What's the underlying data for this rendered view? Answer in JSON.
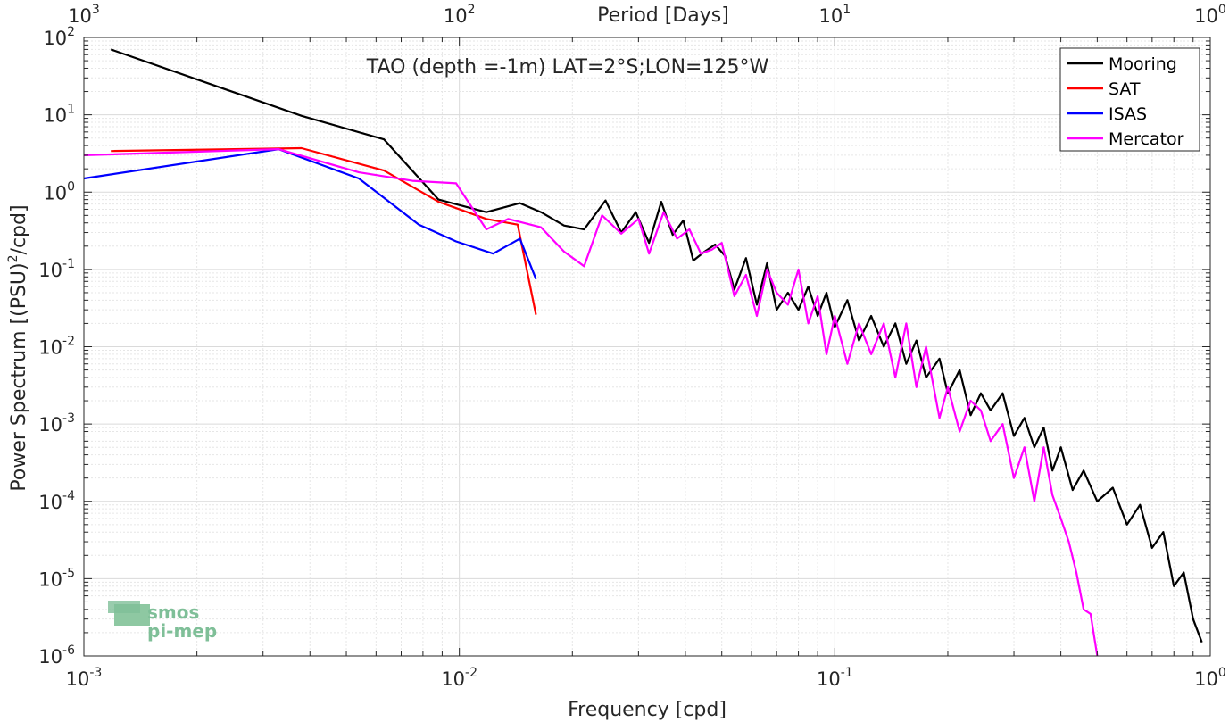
{
  "chart_data": {
    "type": "line",
    "title": "TAO (depth =-1m) LAT=2°S;LON=125°W",
    "xlabel": "Frequency [cpd]",
    "ylabel": "Power Spectrum [(PSU)",
    "ylabel_sup": "2",
    "ylabel_tail": "/cpd]",
    "top_xlabel": "Period [Days]",
    "xscale": "log",
    "yscale": "log",
    "xlim": [
      0.001,
      1
    ],
    "ylim": [
      1e-06,
      100
    ],
    "grid": true,
    "legend_position": "top-right",
    "x_ticks": [
      {
        "base": "10",
        "exp": "-3"
      },
      {
        "base": "10",
        "exp": "-2"
      },
      {
        "base": "10",
        "exp": "-1"
      },
      {
        "base": "10",
        "exp": "0"
      }
    ],
    "top_ticks": [
      {
        "base": "10",
        "exp": "3"
      },
      {
        "base": "10",
        "exp": "2"
      },
      {
        "base": "10",
        "exp": "1"
      },
      {
        "base": "10",
        "exp": "0"
      }
    ],
    "y_ticks": [
      {
        "base": "10",
        "exp": "-6"
      },
      {
        "base": "10",
        "exp": "-5"
      },
      {
        "base": "10",
        "exp": "-4"
      },
      {
        "base": "10",
        "exp": "-3"
      },
      {
        "base": "10",
        "exp": "-2"
      },
      {
        "base": "10",
        "exp": "-1"
      },
      {
        "base": "10",
        "exp": "0"
      },
      {
        "base": "10",
        "exp": "1"
      },
      {
        "base": "10",
        "exp": "2"
      }
    ],
    "series": [
      {
        "name": "Mooring",
        "color": "#000000",
        "points": [
          [
            0.00118,
            70
          ],
          [
            0.0038,
            9.7
          ],
          [
            0.0063,
            4.8
          ],
          [
            0.0088,
            0.8
          ],
          [
            0.0118,
            0.55
          ],
          [
            0.0145,
            0.72
          ],
          [
            0.0165,
            0.55
          ],
          [
            0.019,
            0.37
          ],
          [
            0.0215,
            0.33
          ],
          [
            0.0245,
            0.78
          ],
          [
            0.027,
            0.3
          ],
          [
            0.0295,
            0.55
          ],
          [
            0.032,
            0.22
          ],
          [
            0.0345,
            0.75
          ],
          [
            0.037,
            0.28
          ],
          [
            0.0395,
            0.43
          ],
          [
            0.042,
            0.13
          ],
          [
            0.045,
            0.17
          ],
          [
            0.048,
            0.21
          ],
          [
            0.051,
            0.15
          ],
          [
            0.054,
            0.055
          ],
          [
            0.058,
            0.14
          ],
          [
            0.062,
            0.035
          ],
          [
            0.066,
            0.12
          ],
          [
            0.07,
            0.03
          ],
          [
            0.075,
            0.05
          ],
          [
            0.08,
            0.03
          ],
          [
            0.085,
            0.06
          ],
          [
            0.09,
            0.025
          ],
          [
            0.095,
            0.05
          ],
          [
            0.1,
            0.018
          ],
          [
            0.108,
            0.04
          ],
          [
            0.116,
            0.012
          ],
          [
            0.125,
            0.025
          ],
          [
            0.135,
            0.01
          ],
          [
            0.145,
            0.02
          ],
          [
            0.155,
            0.006
          ],
          [
            0.165,
            0.012
          ],
          [
            0.175,
            0.004
          ],
          [
            0.19,
            0.007
          ],
          [
            0.2,
            0.0025
          ],
          [
            0.215,
            0.005
          ],
          [
            0.23,
            0.0013
          ],
          [
            0.245,
            0.0025
          ],
          [
            0.26,
            0.0015
          ],
          [
            0.28,
            0.0025
          ],
          [
            0.3,
            0.0007
          ],
          [
            0.32,
            0.0012
          ],
          [
            0.34,
            0.0005
          ],
          [
            0.36,
            0.0009
          ],
          [
            0.38,
            0.00025
          ],
          [
            0.4,
            0.0005
          ],
          [
            0.43,
            0.00014
          ],
          [
            0.46,
            0.00025
          ],
          [
            0.5,
            0.0001
          ],
          [
            0.55,
            0.00015
          ],
          [
            0.6,
            5e-05
          ],
          [
            0.65,
            9e-05
          ],
          [
            0.7,
            2.5e-05
          ],
          [
            0.75,
            4e-05
          ],
          [
            0.8,
            8e-06
          ],
          [
            0.85,
            1.2e-05
          ],
          [
            0.9,
            3e-06
          ],
          [
            0.95,
            1.5e-06
          ]
        ]
      },
      {
        "name": "SAT",
        "color": "#ff0000",
        "points": [
          [
            0.00118,
            3.4
          ],
          [
            0.0038,
            3.7
          ],
          [
            0.0063,
            1.9
          ],
          [
            0.0088,
            0.75
          ],
          [
            0.0118,
            0.45
          ],
          [
            0.0143,
            0.38
          ],
          [
            0.016,
            0.026
          ]
        ]
      },
      {
        "name": "ISAS",
        "color": "#0000ff",
        "points": [
          [
            0.001,
            1.5
          ],
          [
            0.0033,
            3.6
          ],
          [
            0.0054,
            1.5
          ],
          [
            0.0078,
            0.38
          ],
          [
            0.0098,
            0.23
          ],
          [
            0.0123,
            0.16
          ],
          [
            0.0145,
            0.25
          ],
          [
            0.016,
            0.075
          ]
        ]
      },
      {
        "name": "Mercator",
        "color": "#ff00ff",
        "points": [
          [
            0.001,
            3.0
          ],
          [
            0.0033,
            3.6
          ],
          [
            0.0054,
            1.8
          ],
          [
            0.0075,
            1.4
          ],
          [
            0.0098,
            1.3
          ],
          [
            0.0118,
            0.33
          ],
          [
            0.0135,
            0.45
          ],
          [
            0.0165,
            0.35
          ],
          [
            0.019,
            0.17
          ],
          [
            0.0215,
            0.11
          ],
          [
            0.024,
            0.5
          ],
          [
            0.027,
            0.29
          ],
          [
            0.03,
            0.45
          ],
          [
            0.032,
            0.16
          ],
          [
            0.035,
            0.55
          ],
          [
            0.038,
            0.25
          ],
          [
            0.041,
            0.33
          ],
          [
            0.044,
            0.16
          ],
          [
            0.047,
            0.18
          ],
          [
            0.05,
            0.22
          ],
          [
            0.054,
            0.045
          ],
          [
            0.058,
            0.085
          ],
          [
            0.062,
            0.025
          ],
          [
            0.066,
            0.1
          ],
          [
            0.07,
            0.05
          ],
          [
            0.075,
            0.035
          ],
          [
            0.08,
            0.1
          ],
          [
            0.085,
            0.02
          ],
          [
            0.09,
            0.045
          ],
          [
            0.095,
            0.008
          ],
          [
            0.1,
            0.025
          ],
          [
            0.108,
            0.006
          ],
          [
            0.116,
            0.02
          ],
          [
            0.125,
            0.008
          ],
          [
            0.135,
            0.02
          ],
          [
            0.145,
            0.004
          ],
          [
            0.155,
            0.02
          ],
          [
            0.165,
            0.003
          ],
          [
            0.175,
            0.01
          ],
          [
            0.19,
            0.0012
          ],
          [
            0.2,
            0.003
          ],
          [
            0.215,
            0.0008
          ],
          [
            0.23,
            0.002
          ],
          [
            0.245,
            0.0015
          ],
          [
            0.26,
            0.0006
          ],
          [
            0.28,
            0.001
          ],
          [
            0.3,
            0.0002
          ],
          [
            0.32,
            0.0005
          ],
          [
            0.34,
            0.0001
          ],
          [
            0.36,
            0.0005
          ],
          [
            0.38,
            0.00012
          ],
          [
            0.4,
            6e-05
          ],
          [
            0.42,
            3e-05
          ],
          [
            0.44,
            1.2e-05
          ],
          [
            0.46,
            4e-06
          ],
          [
            0.48,
            3.5e-06
          ],
          [
            0.5,
            1e-06
          ]
        ]
      }
    ]
  },
  "logo": {
    "line1": "smos",
    "line2": "pi-mep"
  }
}
